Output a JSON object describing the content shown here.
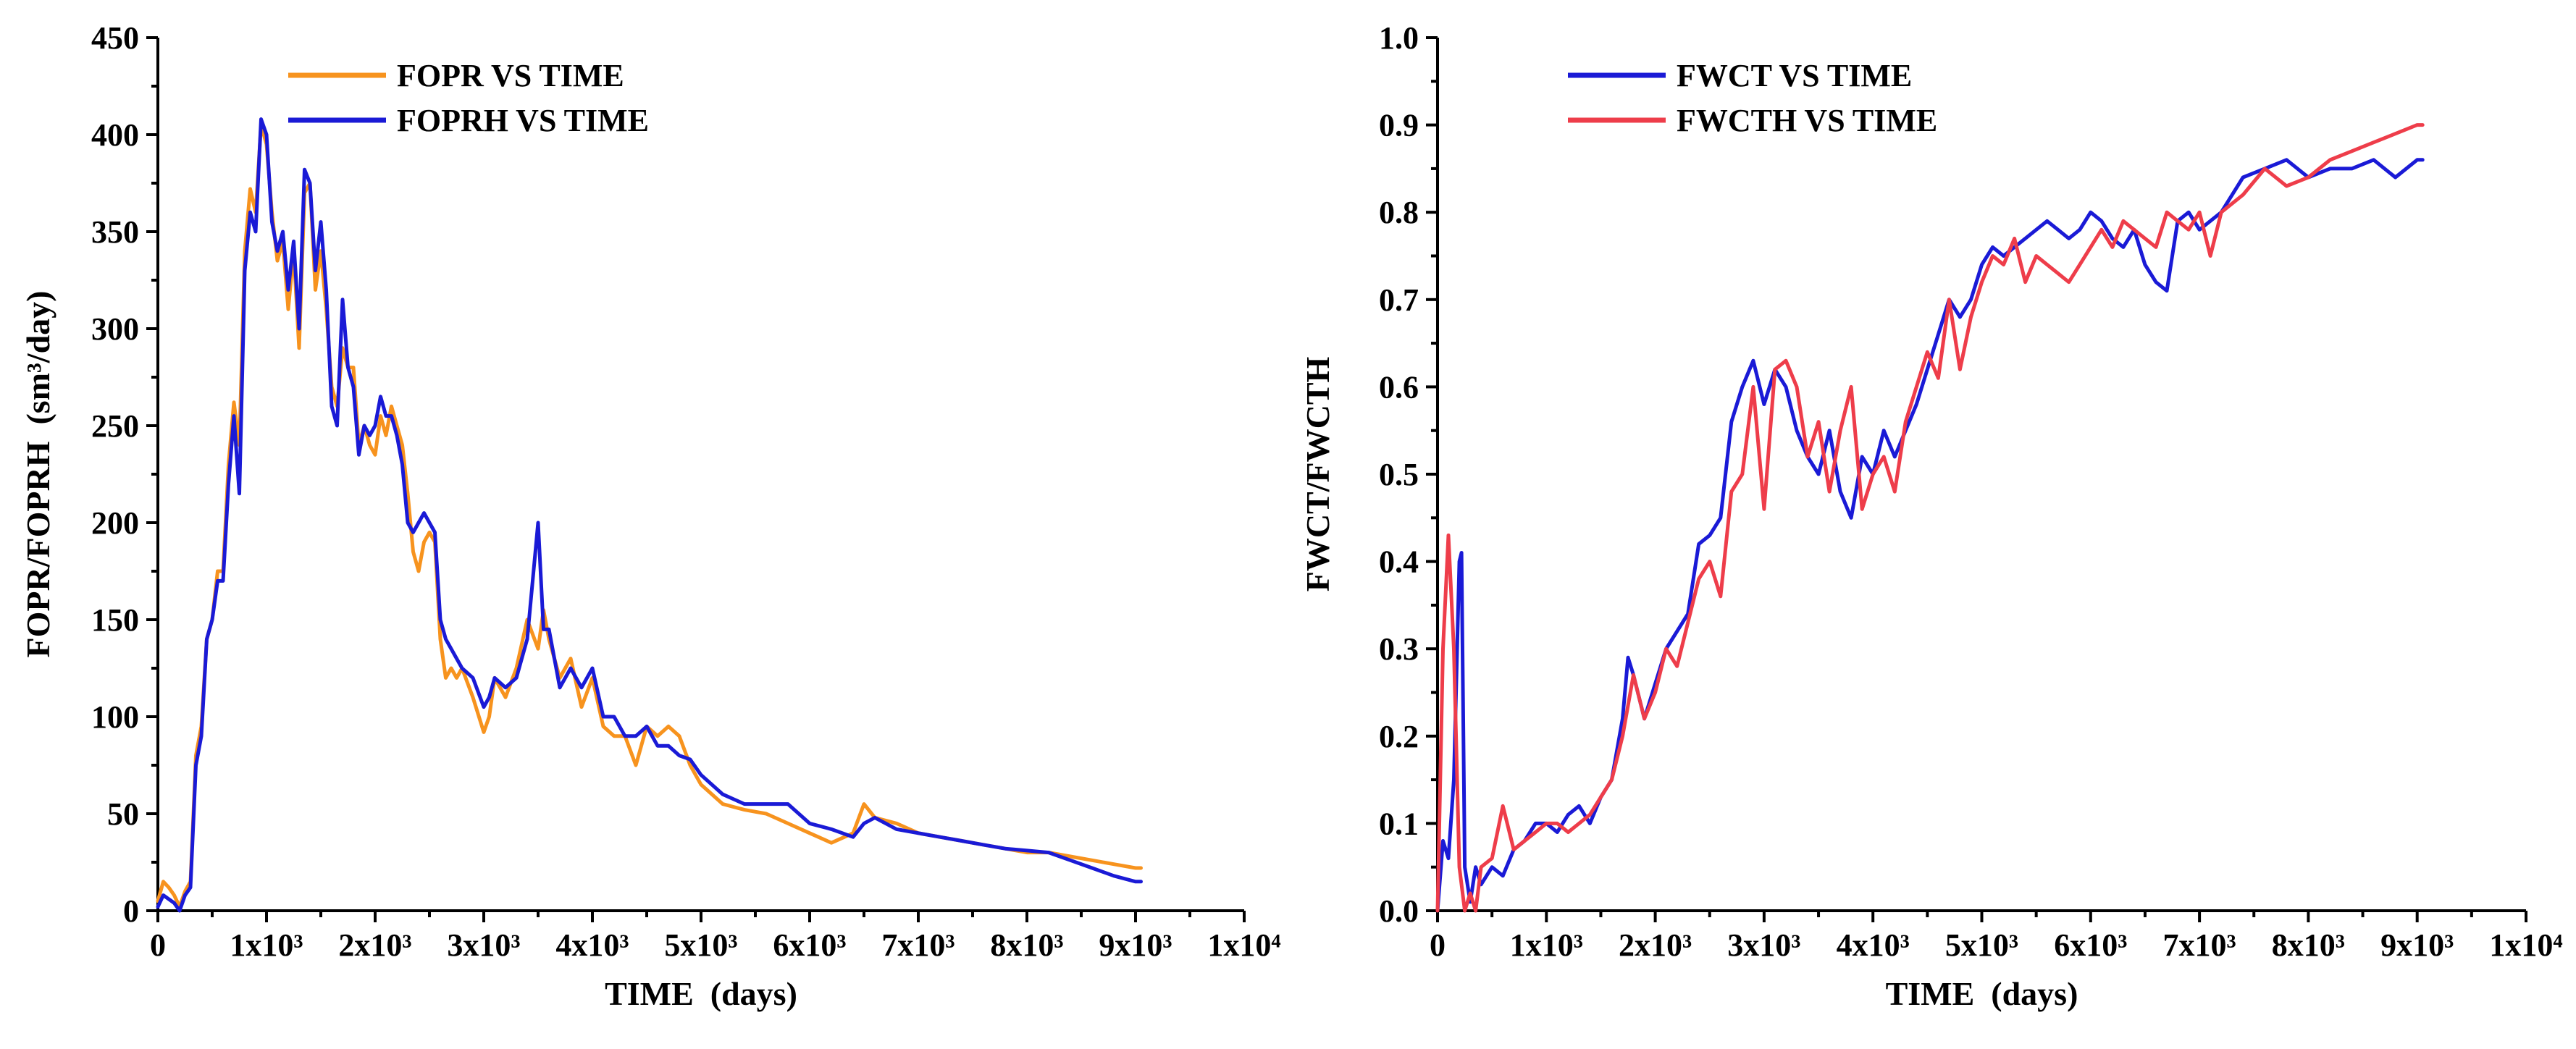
{
  "chart_data": [
    {
      "type": "line",
      "xlabel": "TIME  (days)",
      "ylabel": "FOPR/FOPRH  (sm³/day)",
      "xlim": [
        0,
        10000
      ],
      "ylim": [
        0,
        450
      ],
      "x_ticks": [
        0,
        1000,
        2000,
        3000,
        4000,
        5000,
        6000,
        7000,
        8000,
        9000,
        10000
      ],
      "x_tick_labels": [
        "0",
        "1x10³",
        "2x10³",
        "3x10³",
        "4x10³",
        "5x10³",
        "6x10³",
        "7x10³",
        "8x10³",
        "9x10³",
        "1x10⁴"
      ],
      "y_ticks": [
        0,
        50,
        100,
        150,
        200,
        250,
        300,
        350,
        400,
        450
      ],
      "y_tick_labels": [
        "0",
        "50",
        "100",
        "150",
        "200",
        "250",
        "300",
        "350",
        "400",
        "450"
      ],
      "legend_position": "top-left",
      "grid": false,
      "series": [
        {
          "name": "FOPR VS TIME",
          "color": "#f7931e",
          "x": [
            0,
            50,
            100,
            150,
            200,
            250,
            300,
            350,
            400,
            450,
            500,
            550,
            600,
            650,
            700,
            750,
            800,
            850,
            900,
            950,
            1000,
            1050,
            1100,
            1150,
            1200,
            1250,
            1300,
            1350,
            1400,
            1450,
            1500,
            1550,
            1600,
            1650,
            1700,
            1750,
            1800,
            1850,
            1900,
            1950,
            2000,
            2050,
            2100,
            2150,
            2200,
            2250,
            2300,
            2350,
            2400,
            2450,
            2500,
            2550,
            2600,
            2650,
            2700,
            2750,
            2800,
            2900,
            3000,
            3050,
            3100,
            3200,
            3300,
            3400,
            3500,
            3550,
            3600,
            3700,
            3800,
            3900,
            4000,
            4100,
            4200,
            4300,
            4400,
            4500,
            4600,
            4700,
            4800,
            4900,
            5000,
            5200,
            5400,
            5600,
            5800,
            6000,
            6200,
            6400,
            6500,
            6600,
            6800,
            7000,
            7200,
            7400,
            7600,
            7800,
            8000,
            8200,
            8400,
            8600,
            8800,
            9000,
            9050
          ],
          "values": [
            5,
            15,
            12,
            8,
            2,
            10,
            15,
            80,
            95,
            140,
            150,
            175,
            175,
            230,
            262,
            240,
            340,
            372,
            360,
            405,
            395,
            360,
            335,
            345,
            310,
            340,
            290,
            370,
            375,
            320,
            340,
            310,
            270,
            260,
            290,
            280,
            280,
            240,
            250,
            240,
            235,
            255,
            245,
            260,
            250,
            240,
            215,
            185,
            175,
            190,
            195,
            190,
            140,
            120,
            125,
            120,
            125,
            110,
            92,
            100,
            120,
            110,
            125,
            150,
            135,
            155,
            140,
            120,
            130,
            105,
            120,
            95,
            90,
            90,
            75,
            95,
            90,
            95,
            90,
            75,
            65,
            55,
            52,
            50,
            45,
            40,
            35,
            40,
            55,
            48,
            45,
            40,
            38,
            36,
            34,
            32,
            30,
            30,
            28,
            26,
            24,
            22,
            22
          ]
        },
        {
          "name": "FOPRH VS TIME",
          "color": "#1a1ad6",
          "x": [
            0,
            50,
            100,
            150,
            200,
            250,
            300,
            350,
            400,
            450,
            500,
            550,
            600,
            650,
            700,
            750,
            800,
            850,
            900,
            950,
            1000,
            1050,
            1100,
            1150,
            1200,
            1250,
            1300,
            1350,
            1400,
            1450,
            1500,
            1550,
            1600,
            1650,
            1700,
            1750,
            1800,
            1850,
            1900,
            1950,
            2000,
            2050,
            2100,
            2150,
            2200,
            2250,
            2300,
            2350,
            2400,
            2450,
            2500,
            2550,
            2600,
            2650,
            2700,
            2750,
            2800,
            2900,
            3000,
            3050,
            3100,
            3200,
            3300,
            3400,
            3500,
            3550,
            3600,
            3700,
            3800,
            3900,
            4000,
            4100,
            4200,
            4300,
            4400,
            4500,
            4600,
            4700,
            4800,
            4900,
            5000,
            5200,
            5400,
            5600,
            5800,
            6000,
            6200,
            6400,
            6500,
            6600,
            6800,
            7000,
            7200,
            7400,
            7600,
            7800,
            8000,
            8200,
            8400,
            8600,
            8800,
            9000,
            9050
          ],
          "values": [
            2,
            8,
            6,
            4,
            0,
            8,
            12,
            75,
            90,
            140,
            150,
            170,
            170,
            220,
            255,
            215,
            330,
            360,
            350,
            408,
            400,
            355,
            340,
            350,
            320,
            345,
            300,
            382,
            375,
            330,
            355,
            320,
            260,
            250,
            315,
            280,
            270,
            235,
            250,
            245,
            250,
            265,
            255,
            255,
            245,
            230,
            200,
            195,
            200,
            205,
            200,
            195,
            150,
            140,
            135,
            130,
            125,
            120,
            105,
            110,
            120,
            115,
            120,
            140,
            200,
            145,
            145,
            115,
            125,
            115,
            125,
            100,
            100,
            90,
            90,
            95,
            85,
            85,
            80,
            78,
            70,
            60,
            55,
            55,
            55,
            45,
            42,
            38,
            45,
            48,
            42,
            40,
            38,
            36,
            34,
            32,
            31,
            30,
            26,
            22,
            18,
            15,
            15
          ]
        }
      ]
    },
    {
      "type": "line",
      "xlabel": "TIME  (days)",
      "ylabel": "FWCT/FWCTH",
      "xlim": [
        0,
        10000
      ],
      "ylim": [
        0,
        1.0
      ],
      "x_ticks": [
        0,
        1000,
        2000,
        3000,
        4000,
        5000,
        6000,
        7000,
        8000,
        9000,
        10000
      ],
      "x_tick_labels": [
        "0",
        "1x10³",
        "2x10³",
        "3x10³",
        "4x10³",
        "5x10³",
        "6x10³",
        "7x10³",
        "8x10³",
        "9x10³",
        "1x10⁴"
      ],
      "y_ticks": [
        0,
        0.1,
        0.2,
        0.3,
        0.4,
        0.5,
        0.6,
        0.7,
        0.8,
        0.9,
        1.0
      ],
      "y_tick_labels": [
        "0.0",
        "0.1",
        "0.2",
        "0.3",
        "0.4",
        "0.5",
        "0.6",
        "0.7",
        "0.8",
        "0.9",
        "1.0"
      ],
      "legend_position": "top-left",
      "grid": false,
      "series": [
        {
          "name": "FWCT VS TIME",
          "color": "#1a1ad6",
          "x": [
            0,
            50,
            100,
            150,
            200,
            220,
            250,
            300,
            350,
            400,
            500,
            600,
            700,
            800,
            900,
            1000,
            1100,
            1200,
            1300,
            1400,
            1500,
            1600,
            1700,
            1750,
            1800,
            1900,
            2000,
            2100,
            2200,
            2300,
            2400,
            2500,
            2600,
            2700,
            2800,
            2900,
            3000,
            3100,
            3200,
            3300,
            3400,
            3500,
            3600,
            3700,
            3800,
            3900,
            4000,
            4100,
            4200,
            4300,
            4400,
            4500,
            4600,
            4700,
            4800,
            4900,
            5000,
            5100,
            5200,
            5300,
            5400,
            5500,
            5600,
            5700,
            5800,
            5900,
            6000,
            6100,
            6200,
            6300,
            6400,
            6500,
            6600,
            6700,
            6800,
            6900,
            7000,
            7100,
            7200,
            7400,
            7600,
            7800,
            8000,
            8200,
            8400,
            8600,
            8800,
            9000,
            9050
          ],
          "values": [
            0,
            0.08,
            0.06,
            0.15,
            0.4,
            0.41,
            0.05,
            0.01,
            0.05,
            0.03,
            0.05,
            0.04,
            0.07,
            0.08,
            0.1,
            0.1,
            0.09,
            0.11,
            0.12,
            0.1,
            0.13,
            0.15,
            0.22,
            0.29,
            0.27,
            0.22,
            0.26,
            0.3,
            0.32,
            0.34,
            0.42,
            0.43,
            0.45,
            0.56,
            0.6,
            0.63,
            0.58,
            0.62,
            0.6,
            0.55,
            0.52,
            0.5,
            0.55,
            0.48,
            0.45,
            0.52,
            0.5,
            0.55,
            0.52,
            0.55,
            0.58,
            0.62,
            0.66,
            0.7,
            0.68,
            0.7,
            0.74,
            0.76,
            0.75,
            0.76,
            0.77,
            0.78,
            0.79,
            0.78,
            0.77,
            0.78,
            0.8,
            0.79,
            0.77,
            0.76,
            0.78,
            0.74,
            0.72,
            0.71,
            0.79,
            0.8,
            0.78,
            0.79,
            0.8,
            0.84,
            0.85,
            0.86,
            0.84,
            0.85,
            0.85,
            0.86,
            0.84,
            0.86,
            0.86
          ]
        },
        {
          "name": "FWCTH VS TIME",
          "color": "#ee3d4a",
          "x": [
            0,
            50,
            100,
            150,
            200,
            250,
            300,
            350,
            400,
            500,
            600,
            700,
            800,
            900,
            1000,
            1100,
            1200,
            1300,
            1400,
            1500,
            1600,
            1700,
            1800,
            1900,
            2000,
            2100,
            2200,
            2300,
            2400,
            2500,
            2600,
            2700,
            2800,
            2900,
            3000,
            3100,
            3200,
            3300,
            3400,
            3500,
            3600,
            3700,
            3800,
            3900,
            4000,
            4100,
            4200,
            4300,
            4400,
            4500,
            4600,
            4700,
            4800,
            4900,
            5000,
            5100,
            5200,
            5300,
            5400,
            5500,
            5600,
            5700,
            5800,
            5900,
            6000,
            6100,
            6200,
            6300,
            6400,
            6500,
            6600,
            6700,
            6800,
            6900,
            7000,
            7100,
            7200,
            7400,
            7600,
            7800,
            8000,
            8200,
            8400,
            8600,
            8800,
            9000,
            9050
          ],
          "values": [
            0,
            0.3,
            0.43,
            0.3,
            0.05,
            0.0,
            0.02,
            0.0,
            0.05,
            0.06,
            0.12,
            0.07,
            0.08,
            0.09,
            0.1,
            0.1,
            0.09,
            0.1,
            0.11,
            0.13,
            0.15,
            0.2,
            0.27,
            0.22,
            0.25,
            0.3,
            0.28,
            0.33,
            0.38,
            0.4,
            0.36,
            0.48,
            0.5,
            0.6,
            0.46,
            0.62,
            0.63,
            0.6,
            0.52,
            0.56,
            0.48,
            0.55,
            0.6,
            0.46,
            0.5,
            0.52,
            0.48,
            0.56,
            0.6,
            0.64,
            0.61,
            0.7,
            0.62,
            0.68,
            0.72,
            0.75,
            0.74,
            0.77,
            0.72,
            0.75,
            0.74,
            0.73,
            0.72,
            0.74,
            0.76,
            0.78,
            0.76,
            0.79,
            0.78,
            0.77,
            0.76,
            0.8,
            0.79,
            0.78,
            0.8,
            0.75,
            0.8,
            0.82,
            0.85,
            0.83,
            0.84,
            0.86,
            0.87,
            0.88,
            0.89,
            0.9,
            0.9
          ]
        }
      ]
    }
  ]
}
